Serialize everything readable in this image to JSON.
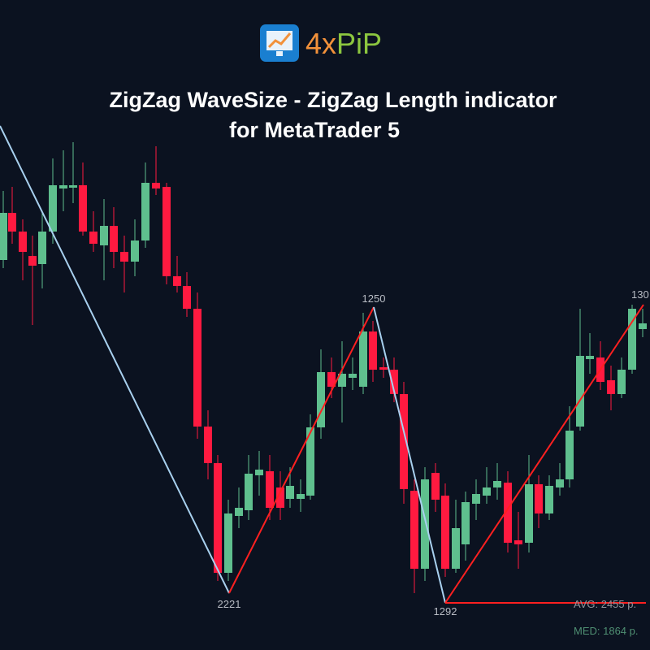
{
  "logo": {
    "prefix": "4x",
    "suffix": "PiP"
  },
  "title": {
    "line1": "ZigZag WaveSize - ZigZag Length indicator",
    "line2": "for MetaTrader 5"
  },
  "labels": {
    "peak1": "1250",
    "trough1": "2221",
    "trough2": "1292",
    "peak2": "130"
  },
  "stats": {
    "avg": "AVG: 2455 p.",
    "med": "MED: 1864 p."
  }
}
